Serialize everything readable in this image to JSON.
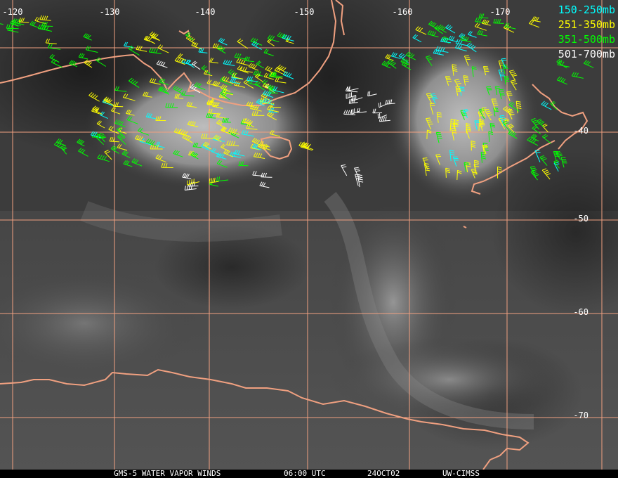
{
  "footer": {
    "product": "GMS-5 WATER VAPOR WINDS",
    "time": "06:00 UTC",
    "date": "24OCT02",
    "source": "UW-CIMSS"
  },
  "legend": [
    {
      "label": "150-250mb",
      "color": "#00ffff"
    },
    {
      "label": "251-350mb",
      "color": "#ffff00"
    },
    {
      "label": "351-500mb",
      "color": "#00ff00"
    },
    {
      "label": "501-700mb",
      "color": "#ffffff"
    }
  ],
  "grid": {
    "color": "#f0a080",
    "longitude_labels": [
      "-120",
      "-130",
      "-140",
      "-150",
      "-160",
      "-170"
    ],
    "latitude_labels": [
      "-40",
      "-50",
      "-60",
      "-70"
    ]
  },
  "coastline_color": "#f0a080"
}
